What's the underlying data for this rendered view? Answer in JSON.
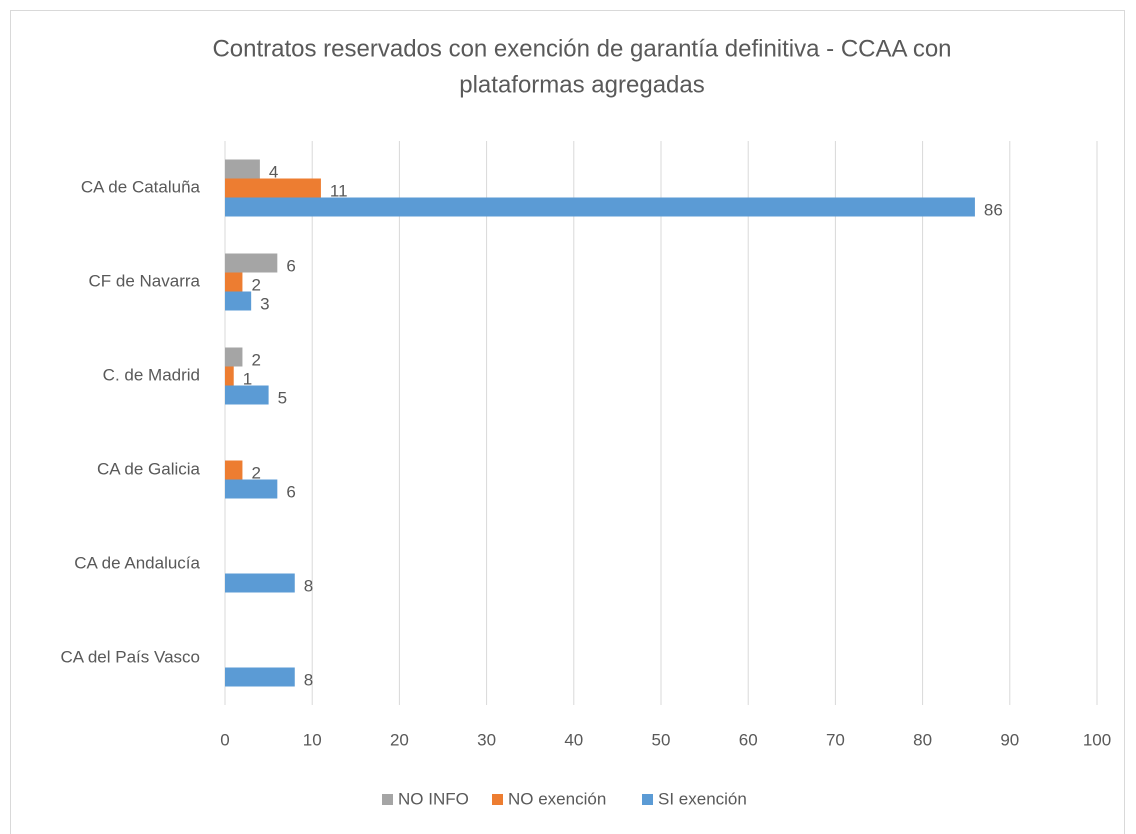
{
  "chart_data": {
    "type": "barh",
    "title": [
      "Contratos reservados con exención de garantía definitiva - CCAA con",
      "plataformas agregadas"
    ],
    "categories": [
      "CA de Cataluña",
      "CF de Navarra",
      "C. de Madrid",
      "CA de Galicia",
      "CA de Andalucía",
      "CA del País Vasco"
    ],
    "series": [
      {
        "name": "NO INFO",
        "color": "#a5a5a5",
        "values": [
          4,
          6,
          2,
          null,
          null,
          null
        ]
      },
      {
        "name": "NO exención",
        "color": "#ed7d31",
        "values": [
          11,
          2,
          1,
          2,
          null,
          null
        ]
      },
      {
        "name": "SI exención",
        "color": "#5b9bd5",
        "values": [
          86,
          3,
          5,
          6,
          8,
          8
        ]
      }
    ],
    "xlim": [
      0,
      100
    ],
    "xticks": [
      0,
      10,
      20,
      30,
      40,
      50,
      60,
      70,
      80,
      90,
      100
    ],
    "grid": true,
    "legend": "bottom"
  }
}
